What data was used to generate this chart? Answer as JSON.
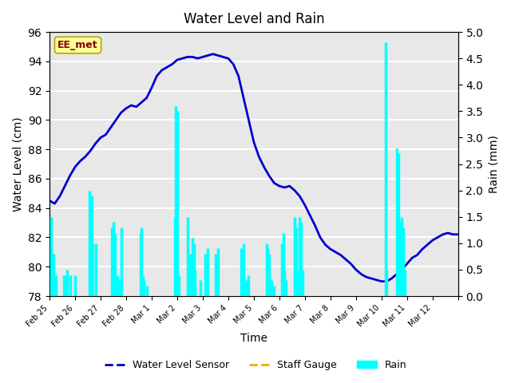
{
  "title": "Water Level and Rain",
  "xlabel": "Time",
  "ylabel_left": "Water Level (cm)",
  "ylabel_right": "Rain (mm)",
  "annotation_text": "EE_met",
  "annotation_color": "#8B0000",
  "annotation_bg": "#FFFF99",
  "ylim_left": [
    78,
    96
  ],
  "ylim_right": [
    0.0,
    5.0
  ],
  "yticks_left": [
    78,
    80,
    82,
    84,
    86,
    88,
    90,
    92,
    94,
    96
  ],
  "yticks_right": [
    0.0,
    0.5,
    1.0,
    1.5,
    2.0,
    2.5,
    3.0,
    3.5,
    4.0,
    4.5,
    5.0
  ],
  "water_level_color": "#0000CC",
  "staff_gauge_color": "#FFA500",
  "rain_color": "#00FFFF",
  "legend_labels": [
    "Water Level Sensor",
    "Staff Gauge",
    "Rain"
  ],
  "background_color": "#ffffff",
  "plot_bg_color": "#E8E8E8",
  "grid_color": "#ffffff",
  "water_level_x": [
    0.0,
    0.2,
    0.4,
    0.6,
    0.8,
    1.0,
    1.2,
    1.4,
    1.6,
    1.8,
    2.0,
    2.2,
    2.4,
    2.6,
    2.8,
    3.0,
    3.2,
    3.4,
    3.6,
    3.8,
    4.0,
    4.2,
    4.4,
    4.6,
    4.8,
    5.0,
    5.2,
    5.4,
    5.6,
    5.8,
    6.0,
    6.2,
    6.4,
    6.6,
    6.8,
    7.0,
    7.2,
    7.4,
    7.6,
    7.8,
    8.0,
    8.2,
    8.4,
    8.6,
    8.8,
    9.0,
    9.2,
    9.4,
    9.6,
    9.8,
    10.0,
    10.2,
    10.4,
    10.6,
    10.8,
    11.0,
    11.2,
    11.4,
    11.6,
    11.8,
    12.0,
    12.2,
    12.4,
    12.6,
    12.8,
    13.0,
    13.2,
    13.4,
    13.6,
    13.8,
    14.0,
    14.2,
    14.4,
    14.6,
    14.8,
    15.0,
    15.2,
    15.4,
    15.6,
    15.8,
    16.0
  ],
  "water_level_y": [
    84.5,
    84.3,
    84.8,
    85.5,
    86.2,
    86.8,
    87.2,
    87.5,
    87.9,
    88.4,
    88.8,
    89.0,
    89.5,
    90.0,
    90.5,
    90.8,
    91.0,
    90.9,
    91.2,
    91.5,
    92.2,
    93.0,
    93.4,
    93.6,
    93.8,
    94.1,
    94.2,
    94.3,
    94.3,
    94.2,
    94.3,
    94.4,
    94.5,
    94.4,
    94.3,
    94.2,
    93.8,
    93.0,
    91.5,
    90.0,
    88.5,
    87.5,
    86.8,
    86.2,
    85.7,
    85.5,
    85.4,
    85.5,
    85.2,
    84.8,
    84.2,
    83.5,
    82.8,
    82.0,
    81.5,
    81.2,
    81.0,
    80.8,
    80.5,
    80.2,
    79.8,
    79.5,
    79.3,
    79.2,
    79.1,
    79.0,
    79.0,
    79.2,
    79.5,
    79.8,
    80.2,
    80.6,
    80.8,
    81.2,
    81.5,
    81.8,
    82.0,
    82.2,
    82.3,
    82.2,
    82.2
  ],
  "rain_spikes": [
    [
      0.05,
      1.5
    ],
    [
      0.15,
      0.8
    ],
    [
      0.25,
      0.4
    ],
    [
      0.55,
      0.4
    ],
    [
      0.65,
      0.4
    ],
    [
      0.7,
      0.5
    ],
    [
      0.8,
      0.4
    ],
    [
      1.0,
      0.4
    ],
    [
      1.55,
      2.0
    ],
    [
      1.65,
      1.9
    ],
    [
      1.7,
      1.0
    ],
    [
      1.8,
      1.0
    ],
    [
      2.45,
      1.3
    ],
    [
      2.5,
      1.4
    ],
    [
      2.55,
      1.2
    ],
    [
      2.65,
      0.4
    ],
    [
      2.7,
      0.3
    ],
    [
      2.75,
      0.3
    ],
    [
      2.8,
      1.3
    ],
    [
      3.55,
      1.2
    ],
    [
      3.6,
      1.3
    ],
    [
      3.65,
      0.4
    ],
    [
      3.7,
      0.3
    ],
    [
      3.8,
      0.2
    ],
    [
      4.9,
      1.5
    ],
    [
      4.95,
      3.6
    ],
    [
      5.0,
      3.5
    ],
    [
      5.05,
      0.4
    ],
    [
      5.4,
      1.5
    ],
    [
      5.5,
      0.8
    ],
    [
      5.6,
      1.1
    ],
    [
      5.65,
      1.0
    ],
    [
      5.7,
      0.5
    ],
    [
      5.9,
      0.3
    ],
    [
      6.1,
      0.8
    ],
    [
      6.2,
      0.9
    ],
    [
      6.5,
      0.8
    ],
    [
      6.6,
      0.9
    ],
    [
      7.5,
      0.9
    ],
    [
      7.6,
      1.0
    ],
    [
      7.7,
      0.3
    ],
    [
      7.8,
      0.4
    ],
    [
      8.5,
      1.0
    ],
    [
      8.55,
      0.9
    ],
    [
      8.6,
      0.8
    ],
    [
      8.7,
      0.3
    ],
    [
      8.8,
      0.2
    ],
    [
      9.1,
      1.0
    ],
    [
      9.15,
      1.2
    ],
    [
      9.2,
      0.5
    ],
    [
      9.25,
      0.3
    ],
    [
      9.6,
      1.5
    ],
    [
      9.65,
      1.3
    ],
    [
      9.7,
      0.5
    ],
    [
      9.8,
      1.5
    ],
    [
      9.85,
      1.4
    ],
    [
      9.9,
      0.5
    ],
    [
      13.15,
      4.8
    ],
    [
      13.2,
      0.5
    ],
    [
      13.6,
      2.8
    ],
    [
      13.65,
      2.7
    ],
    [
      13.7,
      1.4
    ],
    [
      13.8,
      1.5
    ],
    [
      13.85,
      1.3
    ],
    [
      13.9,
      0.5
    ]
  ],
  "xtick_positions": [
    0,
    1,
    2,
    3,
    4,
    5,
    6,
    7,
    8,
    9,
    10,
    11,
    12,
    13,
    14,
    15,
    16
  ],
  "xtick_labels": [
    "Feb 25",
    "Feb 26",
    "Feb 27",
    "Feb 28",
    "Mar 1",
    "Mar 2",
    "Mar 3",
    "Mar 4",
    "Mar 5",
    "Mar 6",
    "Mar 7",
    "Mar 8",
    "Mar 9",
    "Mar 10",
    "Mar 11",
    "Mar 12",
    ""
  ],
  "xlim": [
    0,
    16
  ]
}
